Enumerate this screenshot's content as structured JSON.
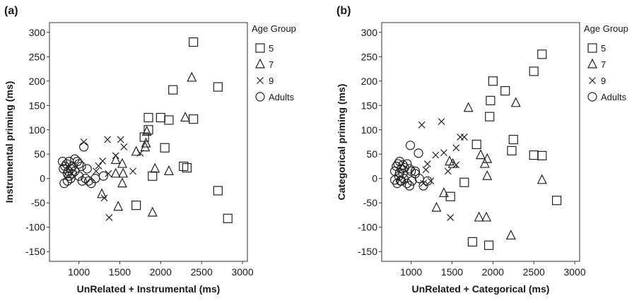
{
  "chart_data": [
    {
      "type": "scatter",
      "panel_label": "(a)",
      "title": "",
      "xlabel": "UnRelated + Instrumental (ms)",
      "ylabel": "Instrumental priming (ms)",
      "xlim": [
        640,
        3060
      ],
      "ylim": [
        -170,
        320
      ],
      "xticks": [
        1000,
        1500,
        2000,
        2500,
        3000
      ],
      "yticks": [
        -150,
        -100,
        -50,
        0,
        50,
        100,
        150,
        200,
        250,
        300
      ],
      "grid": false,
      "legend_position": "right",
      "legend_title": "Age Group",
      "series": [
        {
          "name": "5",
          "marker": "square",
          "points": [
            [
              2400,
              280
            ],
            [
              2150,
              182
            ],
            [
              2700,
              188
            ],
            [
              1850,
              125
            ],
            [
              2000,
              125
            ],
            [
              2100,
              120
            ],
            [
              2400,
              122
            ],
            [
              1850,
              100
            ],
            [
              1800,
              85
            ],
            [
              2050,
              63
            ],
            [
              2280,
              25
            ],
            [
              2320,
              22
            ],
            [
              1900,
              5
            ],
            [
              1700,
              -55
            ],
            [
              2700,
              -25
            ],
            [
              2820,
              -82
            ]
          ]
        },
        {
          "name": "7",
          "marker": "triangle",
          "points": [
            [
              2380,
              207
            ],
            [
              2300,
              125
            ],
            [
              1830,
              96
            ],
            [
              1700,
              55
            ],
            [
              1820,
              72
            ],
            [
              1810,
              64
            ],
            [
              1930,
              20
            ],
            [
              2100,
              15
            ],
            [
              1450,
              10
            ],
            [
              1450,
              38
            ],
            [
              1530,
              30
            ],
            [
              1540,
              10
            ],
            [
              1530,
              -10
            ],
            [
              1280,
              -32
            ],
            [
              1480,
              -58
            ],
            [
              1900,
              -70
            ]
          ]
        },
        {
          "name": "9",
          "marker": "x",
          "points": [
            [
              1060,
              75
            ],
            [
              1350,
              80
            ],
            [
              1510,
              80
            ],
            [
              1550,
              65
            ],
            [
              1450,
              47
            ],
            [
              1290,
              36
            ],
            [
              1240,
              26
            ],
            [
              1360,
              10
            ],
            [
              1660,
              15
            ],
            [
              1750,
              52
            ],
            [
              1210,
              15
            ],
            [
              1310,
              -40
            ],
            [
              1370,
              -80
            ]
          ]
        },
        {
          "name": "Adults",
          "marker": "circle",
          "points": [
            [
              800,
              35
            ],
            [
              810,
              20
            ],
            [
              830,
              25
            ],
            [
              850,
              30
            ],
            [
              870,
              15
            ],
            [
              900,
              20
            ],
            [
              920,
              10
            ],
            [
              950,
              40
            ],
            [
              980,
              35
            ],
            [
              1000,
              30
            ],
            [
              1030,
              25
            ],
            [
              1060,
              65
            ],
            [
              1080,
              0
            ],
            [
              1100,
              20
            ],
            [
              1120,
              -5
            ],
            [
              1150,
              -10
            ],
            [
              1200,
              0
            ],
            [
              1300,
              5
            ],
            [
              860,
              10
            ],
            [
              880,
              5
            ],
            [
              820,
              -10
            ],
            [
              860,
              -5
            ],
            [
              900,
              0
            ],
            [
              950,
              15
            ],
            [
              1000,
              5
            ],
            [
              1040,
              -5
            ],
            [
              920,
              25
            ],
            [
              880,
              35
            ]
          ]
        }
      ]
    },
    {
      "type": "scatter",
      "panel_label": "(b)",
      "title": "",
      "xlabel": "UnRelated + Categorical (ms)",
      "ylabel": "Categorical priming (ms)",
      "xlim": [
        640,
        3060
      ],
      "ylim": [
        -170,
        320
      ],
      "xticks": [
        1000,
        1500,
        2000,
        2500,
        3000
      ],
      "yticks": [
        -150,
        -100,
        -50,
        0,
        50,
        100,
        150,
        200,
        250,
        300
      ],
      "grid": false,
      "legend_position": "right",
      "legend_title": "Age Group",
      "series": [
        {
          "name": "5",
          "marker": "square",
          "points": [
            [
              2600,
              255
            ],
            [
              2500,
              220
            ],
            [
              2000,
              200
            ],
            [
              2150,
              180
            ],
            [
              1970,
              160
            ],
            [
              1960,
              127
            ],
            [
              2250,
              80
            ],
            [
              2230,
              57
            ],
            [
              1800,
              70
            ],
            [
              2500,
              48
            ],
            [
              2600,
              47
            ],
            [
              2780,
              -45
            ],
            [
              1650,
              -8
            ],
            [
              1480,
              -37
            ],
            [
              1750,
              -130
            ],
            [
              1950,
              -137
            ]
          ]
        },
        {
          "name": "7",
          "marker": "triangle",
          "points": [
            [
              1700,
              145
            ],
            [
              2280,
              155
            ],
            [
              1850,
              48
            ],
            [
              1930,
              40
            ],
            [
              1900,
              30
            ],
            [
              1470,
              35
            ],
            [
              1510,
              30
            ],
            [
              1930,
              5
            ],
            [
              2600,
              -3
            ],
            [
              1400,
              -30
            ],
            [
              1310,
              -60
            ],
            [
              1830,
              -80
            ],
            [
              1920,
              -80
            ],
            [
              2220,
              -117
            ]
          ]
        },
        {
          "name": "9",
          "marker": "x",
          "points": [
            [
              1130,
              110
            ],
            [
              1370,
              117
            ],
            [
              1600,
              85
            ],
            [
              1650,
              85
            ],
            [
              1550,
              63
            ],
            [
              1400,
              53
            ],
            [
              1300,
              48
            ],
            [
              1200,
              30
            ],
            [
              1180,
              18
            ],
            [
              1450,
              15
            ],
            [
              1550,
              28
            ],
            [
              1240,
              -5
            ],
            [
              1150,
              -10
            ],
            [
              1480,
              -80
            ]
          ]
        },
        {
          "name": "Adults",
          "marker": "circle",
          "points": [
            [
              990,
              68
            ],
            [
              1090,
              52
            ],
            [
              800,
              15
            ],
            [
              820,
              25
            ],
            [
              840,
              30
            ],
            [
              860,
              35
            ],
            [
              880,
              20
            ],
            [
              900,
              28
            ],
            [
              920,
              22
            ],
            [
              950,
              30
            ],
            [
              980,
              20
            ],
            [
              1000,
              15
            ],
            [
              1050,
              10
            ],
            [
              1100,
              0
            ],
            [
              1150,
              -15
            ],
            [
              1200,
              -5
            ],
            [
              850,
              5
            ],
            [
              870,
              -5
            ],
            [
              800,
              -3
            ],
            [
              830,
              -10
            ],
            [
              880,
              -5
            ],
            [
              910,
              0
            ],
            [
              950,
              -10
            ],
            [
              980,
              -15
            ],
            [
              1010,
              -5
            ],
            [
              1050,
              15
            ],
            [
              900,
              10
            ],
            [
              860,
              12
            ]
          ]
        }
      ]
    }
  ]
}
